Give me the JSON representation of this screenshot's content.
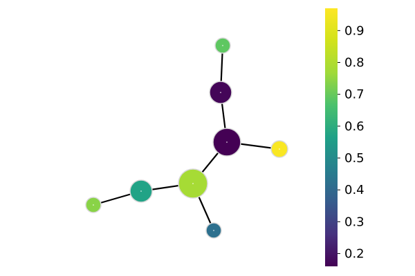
{
  "chart_data": {
    "type": "network",
    "nodes": [
      {
        "id": "n1",
        "value": 0.69
      },
      {
        "id": "n2",
        "value": 0.17
      },
      {
        "id": "n3",
        "value": 0.16
      },
      {
        "id": "n4",
        "value": 0.96
      },
      {
        "id": "n5",
        "value": 0.78
      },
      {
        "id": "n6",
        "value": 0.57
      },
      {
        "id": "n7",
        "value": 0.74
      },
      {
        "id": "n8",
        "value": 0.42
      }
    ],
    "edges": [
      [
        "n1",
        "n2"
      ],
      [
        "n2",
        "n3"
      ],
      [
        "n3",
        "n4"
      ],
      [
        "n3",
        "n5"
      ],
      [
        "n5",
        "n6"
      ],
      [
        "n6",
        "n7"
      ],
      [
        "n5",
        "n8"
      ]
    ],
    "colorbar": {
      "colormap": "viridis",
      "range": [
        0.16,
        0.97
      ],
      "ticks": [
        "0.2",
        "0.3",
        "0.4",
        "0.5",
        "0.6",
        "0.7",
        "0.8",
        "0.9"
      ],
      "tick_values": [
        0.2,
        0.3,
        0.4,
        0.5,
        0.6,
        0.7,
        0.8,
        0.9
      ]
    },
    "node_outline": "#d9d9d9",
    "edge_color": "#000000"
  }
}
